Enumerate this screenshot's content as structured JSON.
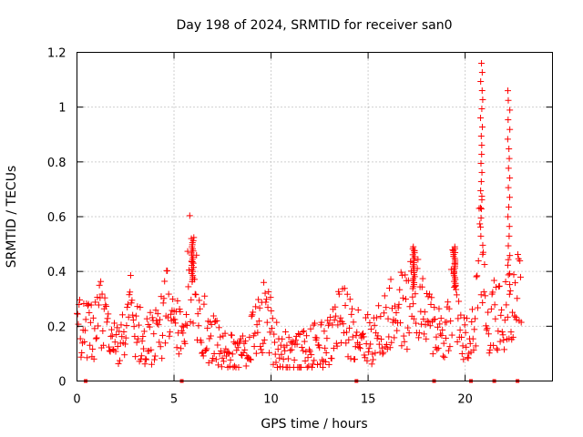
{
  "chart_data": {
    "type": "scatter",
    "title": "Day 198 of 2024, SRMTID for receiver san0",
    "xlabel": "GPS time / hours",
    "ylabel": "SRMTID / TECUs",
    "xlim": [
      0,
      24.5
    ],
    "ylim": [
      0,
      1.2
    ],
    "xticks": [
      0,
      5,
      10,
      15,
      20
    ],
    "xtick_labels": [
      "0",
      "5",
      "10",
      "15",
      "20"
    ],
    "yticks": [
      0,
      0.2,
      0.4,
      0.6,
      0.8,
      1.0,
      1.2
    ],
    "ytick_labels": [
      "0",
      "0.2",
      "0.4",
      "0.6",
      "0.8",
      "1",
      "1.2"
    ],
    "grid": true,
    "marker": "+",
    "color": "#ff0000",
    "series": [
      {
        "name": "SRMTID",
        "profile": [
          [
            0.0,
            0.19
          ],
          [
            0.5,
            0.2
          ],
          [
            1.0,
            0.19
          ],
          [
            1.2,
            0.27
          ],
          [
            1.6,
            0.18
          ],
          [
            2.0,
            0.12
          ],
          [
            2.4,
            0.2
          ],
          [
            2.8,
            0.25
          ],
          [
            3.2,
            0.17
          ],
          [
            3.6,
            0.15
          ],
          [
            4.0,
            0.16
          ],
          [
            4.4,
            0.2
          ],
          [
            4.7,
            0.28
          ],
          [
            5.0,
            0.18
          ],
          [
            5.4,
            0.22
          ],
          [
            5.8,
            0.4
          ],
          [
            6.2,
            0.3
          ],
          [
            6.6,
            0.19
          ],
          [
            7.0,
            0.15
          ],
          [
            7.4,
            0.12
          ],
          [
            7.8,
            0.1
          ],
          [
            8.2,
            0.09
          ],
          [
            8.6,
            0.12
          ],
          [
            9.0,
            0.16
          ],
          [
            9.4,
            0.2
          ],
          [
            9.8,
            0.26
          ],
          [
            10.1,
            0.15
          ],
          [
            10.5,
            0.12
          ],
          [
            11.0,
            0.11
          ],
          [
            11.5,
            0.1
          ],
          [
            12.0,
            0.12
          ],
          [
            12.5,
            0.13
          ],
          [
            13.0,
            0.14
          ],
          [
            13.5,
            0.24
          ],
          [
            14.0,
            0.2
          ],
          [
            14.5,
            0.19
          ],
          [
            15.0,
            0.15
          ],
          [
            15.5,
            0.17
          ],
          [
            16.0,
            0.22
          ],
          [
            16.5,
            0.27
          ],
          [
            17.0,
            0.25
          ],
          [
            17.4,
            0.35
          ],
          [
            17.8,
            0.24
          ],
          [
            18.2,
            0.21
          ],
          [
            18.6,
            0.2
          ],
          [
            19.0,
            0.16
          ],
          [
            19.4,
            0.37
          ],
          [
            19.8,
            0.15
          ],
          [
            20.2,
            0.14
          ],
          [
            20.5,
            0.2
          ],
          [
            20.8,
            0.5
          ],
          [
            21.2,
            0.2
          ],
          [
            21.6,
            0.25
          ],
          [
            22.0,
            0.2
          ],
          [
            22.3,
            0.34
          ],
          [
            22.6,
            0.31
          ],
          [
            22.9,
            0.3
          ]
        ],
        "spikes": [
          {
            "x": 5.95,
            "peak": 0.52
          },
          {
            "x": 17.35,
            "peak": 0.49
          },
          {
            "x": 19.45,
            "peak": 0.49
          },
          {
            "x": 20.85,
            "peak": 1.16
          },
          {
            "x": 22.25,
            "peak": 1.06
          }
        ]
      }
    ],
    "gaps_at_zero": [
      0.45,
      5.4,
      14.4,
      18.4,
      20.3,
      21.5,
      22.7
    ]
  }
}
